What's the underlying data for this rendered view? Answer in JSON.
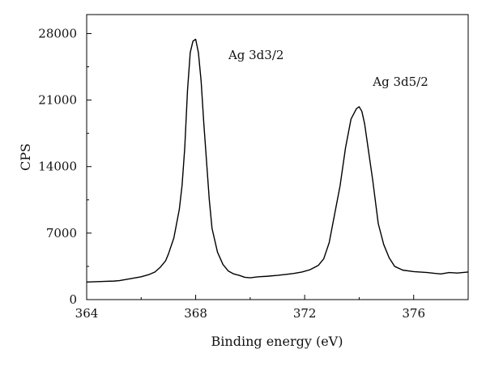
{
  "chart_data": {
    "type": "line",
    "title": "",
    "xlabel": "Binding energy (eV)",
    "ylabel": "CPS",
    "xlim": [
      364,
      378
    ],
    "ylim": [
      0,
      30000
    ],
    "x_ticks": [
      364,
      368,
      372,
      376
    ],
    "x_tick_labels": [
      "364",
      "368",
      "372",
      "376"
    ],
    "y_ticks": [
      0,
      7000,
      14000,
      21000,
      28000
    ],
    "y_tick_labels": [
      "0",
      "7000",
      "14000",
      "21000",
      "28000"
    ],
    "grid": false,
    "legend": "none",
    "line_color": "#000000",
    "series": [
      {
        "x": [
          364.0,
          364.5,
          365.0,
          365.2,
          365.5,
          366.0,
          366.3,
          366.5,
          366.7,
          366.9,
          367.0,
          367.2,
          367.4,
          367.5,
          367.6,
          367.7,
          367.8,
          367.9,
          368.0,
          368.1,
          368.2,
          368.3,
          368.4,
          368.5,
          368.6,
          368.8,
          369.0,
          369.2,
          369.4,
          369.6,
          369.8,
          370.0,
          370.3,
          370.6,
          371.0,
          371.3,
          371.6,
          371.9,
          372.2,
          372.5,
          372.7,
          372.9,
          373.1,
          373.3,
          373.5,
          373.7,
          373.9,
          374.0,
          374.1,
          374.2,
          374.3,
          374.5,
          374.7,
          374.9,
          375.1,
          375.3,
          375.6,
          376.0,
          376.5,
          376.8,
          377.0,
          377.3,
          377.6,
          378.0
        ],
        "y": [
          1850,
          1900,
          1950,
          2000,
          2150,
          2400,
          2650,
          2900,
          3400,
          4100,
          4800,
          6500,
          9500,
          12000,
          16000,
          22000,
          26000,
          27200,
          27400,
          26000,
          23000,
          18500,
          14500,
          10500,
          7500,
          5000,
          3700,
          3000,
          2700,
          2550,
          2350,
          2300,
          2400,
          2450,
          2550,
          2650,
          2750,
          2900,
          3150,
          3600,
          4300,
          6000,
          9000,
          12000,
          16000,
          19000,
          20100,
          20300,
          19800,
          18500,
          16500,
          12500,
          8000,
          5800,
          4400,
          3500,
          3100,
          2950,
          2850,
          2750,
          2700,
          2850,
          2800,
          2900
        ]
      }
    ],
    "annotations": [
      {
        "text": "Ag 3d3/2",
        "x": 369.2,
        "y": 25300
      },
      {
        "text": "Ag 3d5/2",
        "x": 374.5,
        "y": 22500
      }
    ]
  }
}
